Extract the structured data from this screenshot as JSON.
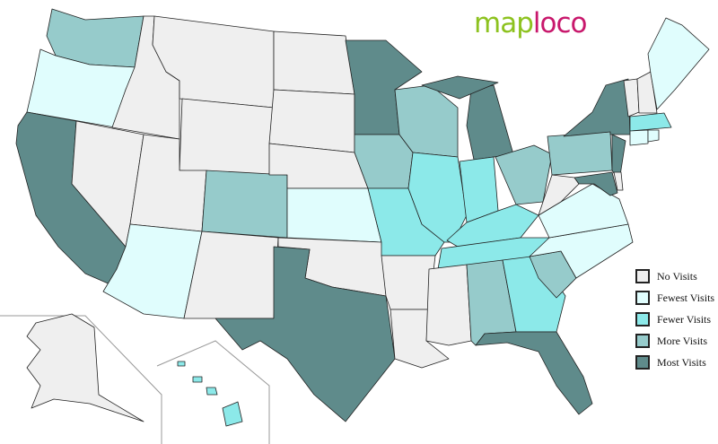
{
  "logo": {
    "part1": "map",
    "part2": "loco"
  },
  "legend": [
    {
      "key": "none",
      "label": "No Visits",
      "color": "#efefef"
    },
    {
      "key": "fewest",
      "label": "Fewest Visits",
      "color": "#e0fdfd"
    },
    {
      "key": "fewer",
      "label": "Fewer Visits",
      "color": "#8ce9e9"
    },
    {
      "key": "more",
      "label": "More Visits",
      "color": "#96cbcb"
    },
    {
      "key": "most",
      "label": "Most Visits",
      "color": "#5f8b8b"
    }
  ],
  "states": {
    "WA": "more",
    "OR": "fewest",
    "CA": "most",
    "NV": "none",
    "ID": "none",
    "MT": "none",
    "WY": "none",
    "UT": "none",
    "AZ": "fewest",
    "CO": "more",
    "NM": "none",
    "ND": "none",
    "SD": "none",
    "NE": "none",
    "KS": "fewest",
    "OK": "none",
    "TX": "most",
    "MN": "most",
    "IA": "more",
    "MO": "fewer",
    "AR": "none",
    "LA": "none",
    "WI": "more",
    "IL": "fewer",
    "MI": "most",
    "IN": "fewer",
    "OH": "more",
    "KY": "fewer",
    "TN": "fewer",
    "MS": "none",
    "AL": "more",
    "GA": "fewer",
    "FL": "most",
    "SC": "more",
    "NC": "fewest",
    "VA": "fewest",
    "WV": "none",
    "PA": "more",
    "NY": "most",
    "NJ": "most",
    "MD": "most",
    "DE": "none",
    "VT": "none",
    "NH": "none",
    "ME": "fewest",
    "MA": "fewer",
    "CT": "fewest",
    "RI": "fewest",
    "AK": "none",
    "HI": "fewer"
  }
}
